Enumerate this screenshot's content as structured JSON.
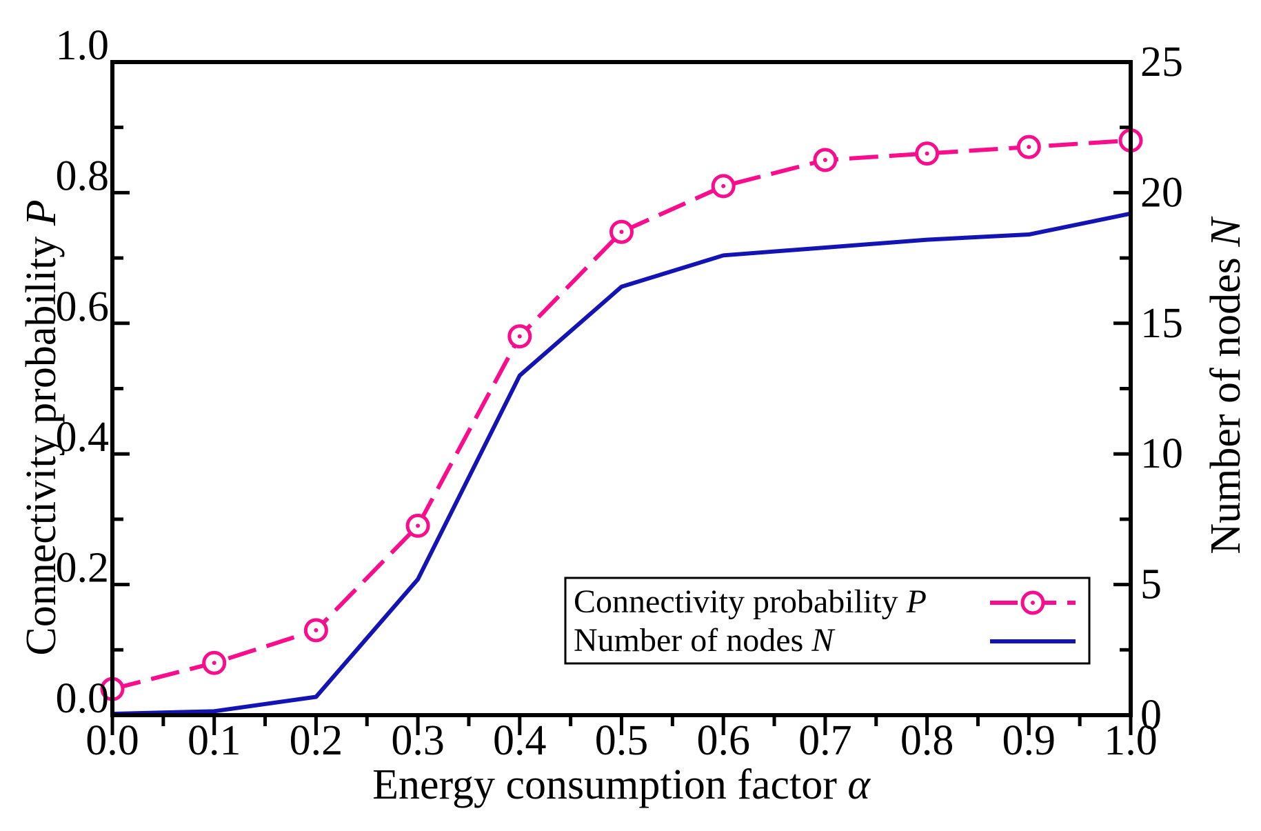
{
  "chart_data": {
    "type": "line",
    "title": "",
    "x": [
      0.0,
      0.1,
      0.2,
      0.3,
      0.4,
      0.5,
      0.6,
      0.7,
      0.8,
      0.9,
      1.0
    ],
    "series": [
      {
        "name": "Connectivity probability P",
        "axis": "left",
        "color": "#F90D8C",
        "line_style": "long-dash",
        "marker": "open-circle-with-dot",
        "values": [
          0.04,
          0.08,
          0.13,
          0.29,
          0.58,
          0.74,
          0.81,
          0.85,
          0.86,
          0.87,
          0.88
        ]
      },
      {
        "name": "Number of nodes N",
        "axis": "right",
        "color": "#1414B4",
        "line_style": "solid",
        "marker": "none",
        "values": [
          0.05,
          0.15,
          0.7,
          5.2,
          13.0,
          16.4,
          17.6,
          17.9,
          18.2,
          18.4,
          19.2
        ]
      }
    ],
    "x_axis": {
      "title": "Energy consumption factor ",
      "title_symbol": "α",
      "range": [
        0.0,
        1.0
      ],
      "major_step": 0.1,
      "minor_step": 0.05,
      "tick_labels": [
        "0.0",
        "0.1",
        "0.2",
        "0.3",
        "0.4",
        "0.5",
        "0.6",
        "0.7",
        "0.8",
        "0.9",
        "1.0"
      ]
    },
    "left_axis": {
      "title": "Connectivity probability ",
      "title_symbol": "P",
      "range": [
        0.0,
        1.0
      ],
      "major_step": 0.2,
      "minor_step": 0.1,
      "tick_labels": [
        "0.0",
        "0.2",
        "0.4",
        "0.6",
        "0.8",
        "1.0"
      ]
    },
    "right_axis": {
      "title": "Number of nodes ",
      "title_symbol": "N",
      "range": [
        0,
        25
      ],
      "major_step": 5,
      "minor_step": 2.5,
      "tick_labels": [
        "0",
        "5",
        "10",
        "15",
        "20",
        "25"
      ]
    },
    "legend": {
      "position": "bottom-right-inside",
      "border": true,
      "entries": [
        {
          "text": "Connectivity probability ",
          "symbol": "P"
        },
        {
          "text": "Number of nodes ",
          "symbol": "N"
        }
      ]
    },
    "grid": false,
    "background_color": "#FFFFFF",
    "axis_color": "#000000"
  }
}
